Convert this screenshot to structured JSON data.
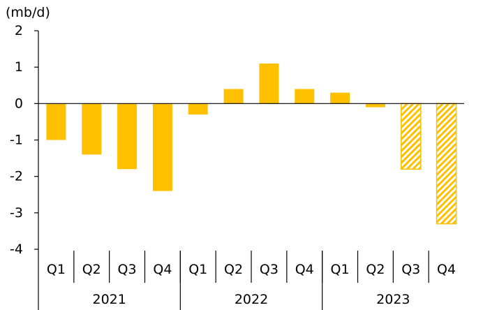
{
  "chart_data": {
    "type": "bar",
    "title": "",
    "ylabel": "(mb/d)",
    "xlabel": "",
    "ylim": [
      -4,
      2
    ],
    "yticks": [
      2,
      1,
      0,
      -1,
      -2,
      -3,
      -4
    ],
    "ytick_labels": [
      "2",
      "1",
      "0",
      "-1",
      "-2",
      "-3",
      "-4"
    ],
    "categories": [
      "Q1",
      "Q2",
      "Q3",
      "Q4",
      "Q1",
      "Q2",
      "Q3",
      "Q4",
      "Q1",
      "Q2",
      "Q3",
      "Q4"
    ],
    "groups": [
      {
        "label": "2021",
        "count": 4
      },
      {
        "label": "2022",
        "count": 4
      },
      {
        "label": "2023",
        "count": 4
      }
    ],
    "values": [
      -1.0,
      -1.4,
      -1.8,
      -2.4,
      -0.3,
      0.4,
      1.1,
      0.4,
      0.3,
      -0.1,
      -1.8,
      -3.3
    ],
    "forecast": [
      false,
      false,
      false,
      false,
      false,
      false,
      false,
      false,
      false,
      false,
      true,
      true
    ],
    "colors": {
      "bar": "#FFC000",
      "hatch_bg": "#ffffff",
      "axis": "#000000"
    }
  }
}
